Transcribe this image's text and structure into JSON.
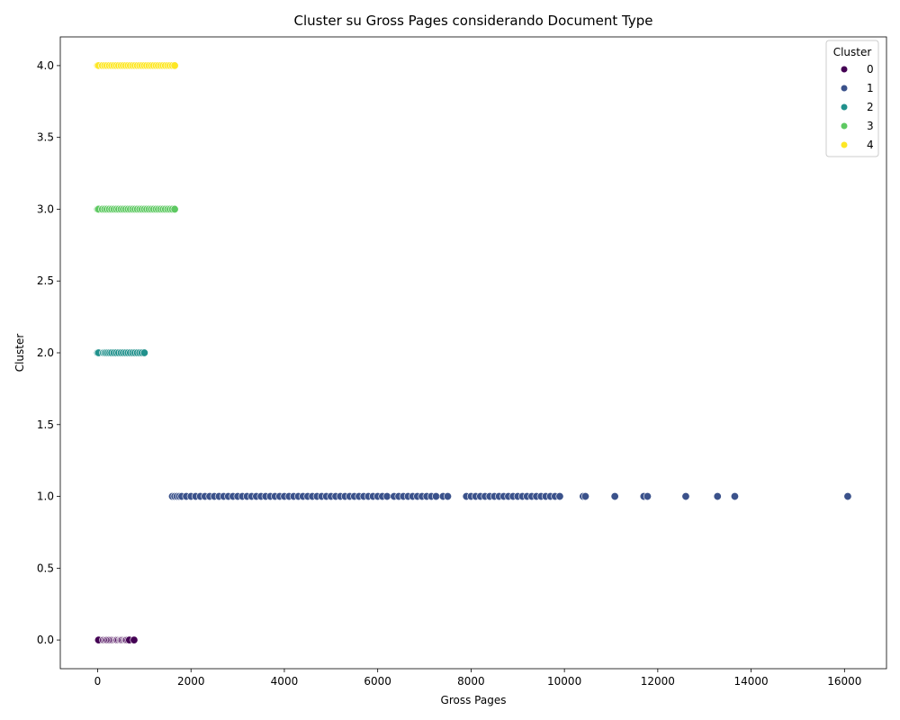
{
  "chart_data": {
    "type": "scatter",
    "title": "Cluster su Gross Pages considerando Document Type",
    "xlabel": "Gross Pages",
    "ylabel": "Cluster",
    "xlim": [
      -800,
      16900
    ],
    "ylim": [
      -0.2,
      4.2
    ],
    "xticks": [
      0,
      2000,
      4000,
      6000,
      8000,
      10000,
      12000,
      14000,
      16000
    ],
    "xtick_labels": [
      "0",
      "2000",
      "4000",
      "6000",
      "8000",
      "10000",
      "12000",
      "14000",
      "16000"
    ],
    "yticks": [
      0.0,
      0.5,
      1.0,
      1.5,
      2.0,
      2.5,
      3.0,
      3.5,
      4.0
    ],
    "ytick_labels": [
      "0.0",
      "0.5",
      "1.0",
      "1.5",
      "2.0",
      "2.5",
      "3.0",
      "3.5",
      "4.0"
    ],
    "grid": false,
    "legend": {
      "title": "Cluster",
      "placement": "top-right",
      "entries": [
        {
          "label": "0",
          "color": "#440154"
        },
        {
          "label": "1",
          "color": "#3b528b"
        },
        {
          "label": "2",
          "color": "#21918c"
        },
        {
          "label": "3",
          "color": "#5ec962"
        },
        {
          "label": "4",
          "color": "#fde725"
        }
      ]
    },
    "series": [
      {
        "color": "#440154",
        "y": 0,
        "x": [
          0,
          10,
          20,
          120,
          150,
          180,
          200,
          230,
          260,
          290,
          320,
          350,
          380,
          400,
          420,
          450,
          480,
          500,
          520,
          550,
          580,
          600,
          620,
          650,
          680,
          780
        ]
      },
      {
        "color": "#3b528b",
        "y": 1,
        "x": [
          1600,
          1650,
          1700,
          1750,
          1800,
          1900,
          2000,
          2100,
          2200,
          2300,
          2400,
          2500,
          2600,
          2700,
          2800,
          2900,
          3000,
          3100,
          3200,
          3300,
          3400,
          3500,
          3600,
          3700,
          3800,
          3900,
          4000,
          4100,
          4200,
          4300,
          4400,
          4500,
          4600,
          4700,
          4800,
          4900,
          5000,
          5100,
          5200,
          5300,
          5400,
          5500,
          5600,
          5700,
          5800,
          5900,
          6000,
          6100,
          6200,
          6350,
          6450,
          6550,
          6650,
          6750,
          6850,
          6950,
          7050,
          7150,
          7250,
          7400,
          7500,
          7900,
          8000,
          8100,
          8200,
          8300,
          8400,
          8500,
          8600,
          8700,
          8800,
          8900,
          9000,
          9100,
          9200,
          9300,
          9400,
          9500,
          9600,
          9700,
          9800,
          9900,
          10400,
          10450,
          11080,
          11700,
          11780,
          12600,
          13280,
          13650,
          16070
        ]
      },
      {
        "color": "#21918c",
        "y": 2,
        "x": [
          0,
          20,
          120,
          150,
          180,
          220,
          260,
          300,
          350,
          400,
          450,
          500,
          550,
          600,
          650,
          700,
          750,
          800,
          850,
          900,
          950,
          1000
        ]
      },
      {
        "color": "#5ec962",
        "y": 3,
        "x": [
          0,
          20,
          100,
          150,
          200,
          250,
          300,
          350,
          400,
          450,
          500,
          550,
          600,
          650,
          700,
          750,
          800,
          850,
          900,
          950,
          1000,
          1050,
          1100,
          1150,
          1200,
          1250,
          1300,
          1350,
          1400,
          1450,
          1500,
          1550,
          1600,
          1650
        ]
      },
      {
        "color": "#fde725",
        "y": 4,
        "x": [
          0,
          20,
          100,
          150,
          200,
          250,
          300,
          350,
          400,
          450,
          500,
          550,
          600,
          650,
          700,
          750,
          800,
          850,
          900,
          950,
          1000,
          1050,
          1100,
          1150,
          1200,
          1250,
          1300,
          1350,
          1400,
          1450,
          1500,
          1550,
          1600,
          1650
        ]
      }
    ]
  }
}
